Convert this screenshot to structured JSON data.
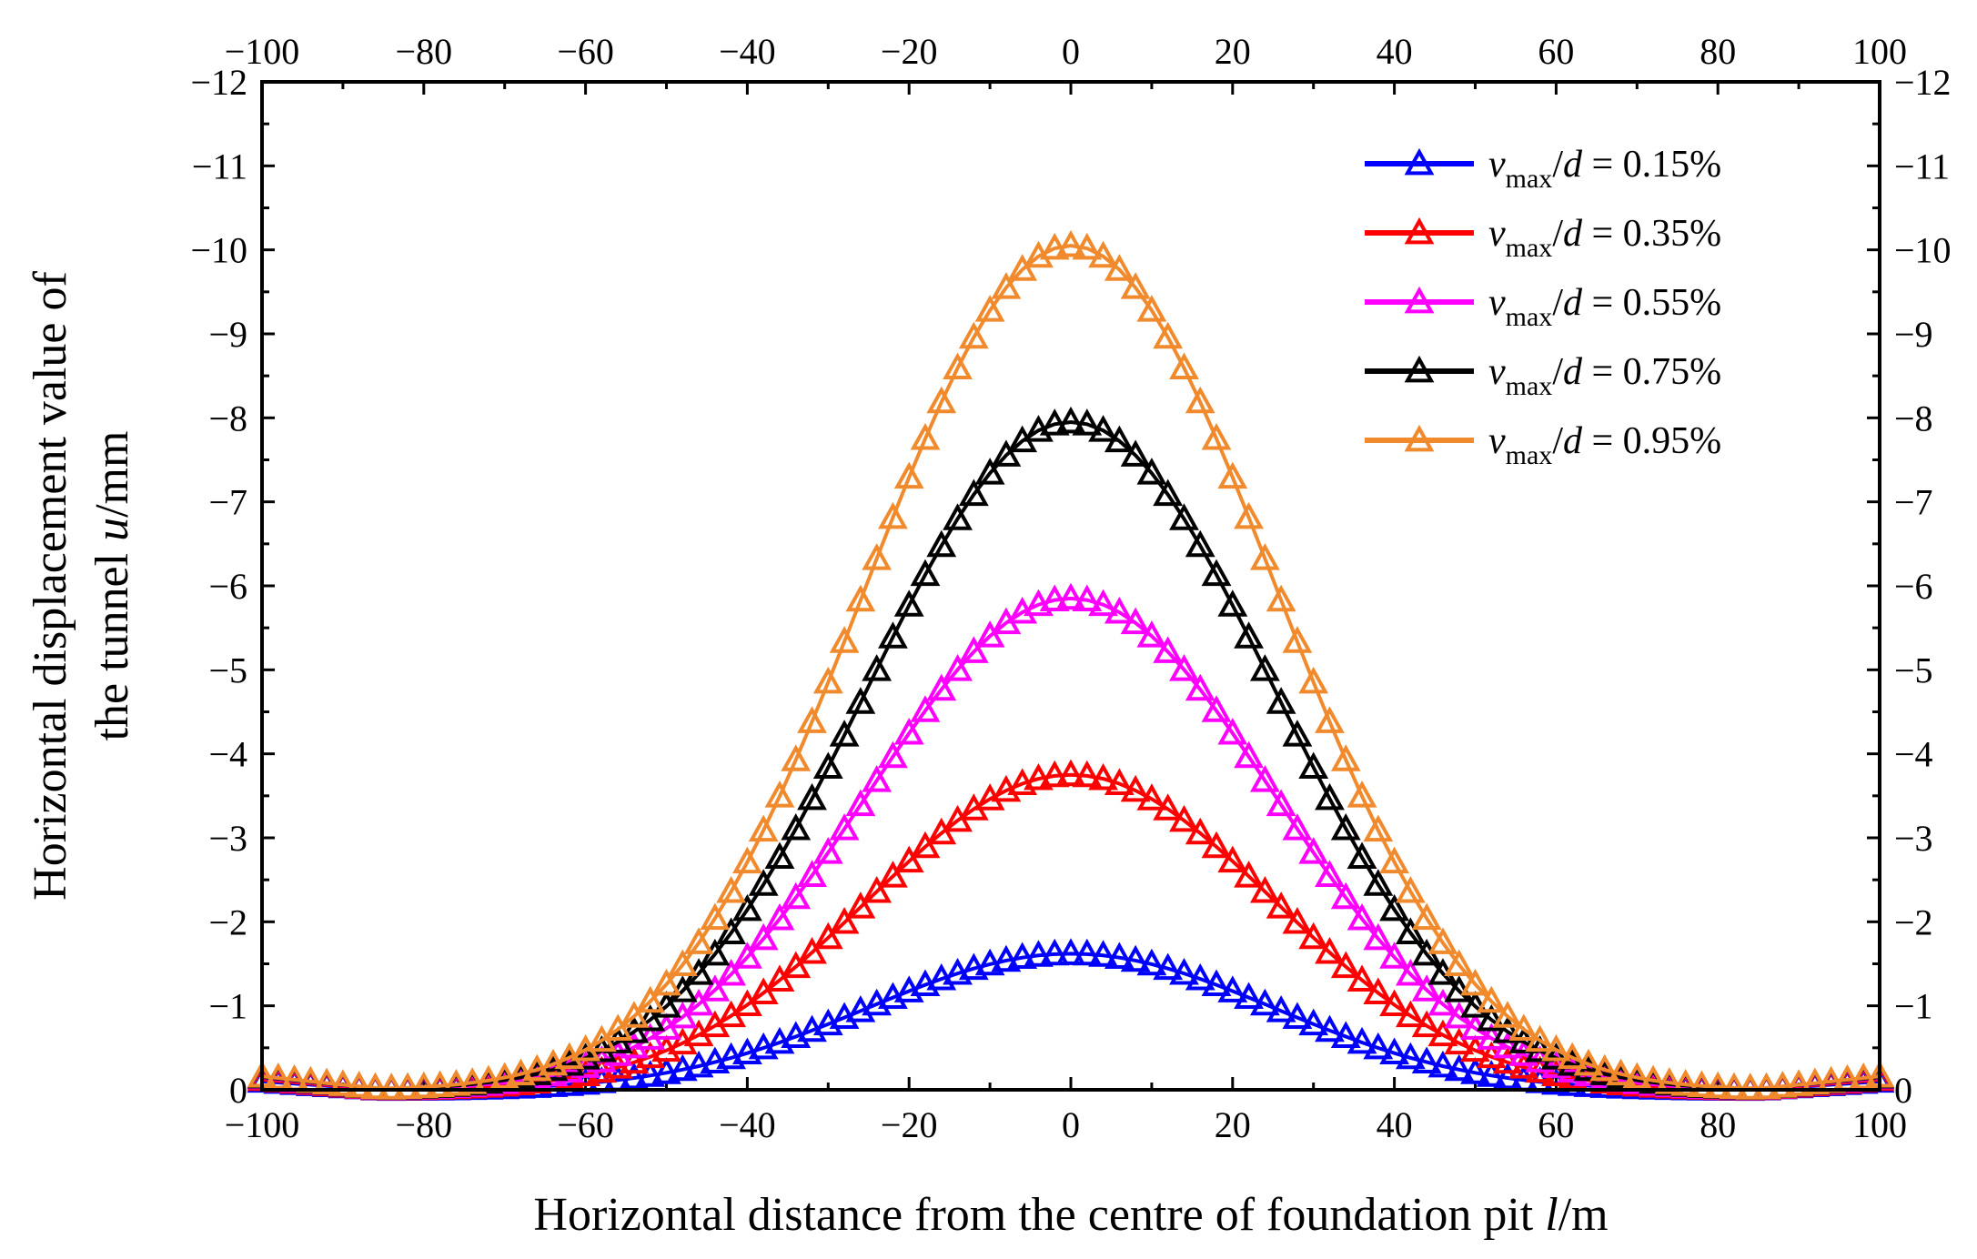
{
  "chart_data": {
    "type": "line",
    "title": "",
    "xlabel": "Horizontal distance from the centre of foundation pit ",
    "xlabel_var": "l",
    "xlabel_unit": "/m",
    "ylabel_line1": "Horizontal displacement value of",
    "ylabel_line2": "the tunnel ",
    "ylabel_var": "u",
    "ylabel_unit": "/mm",
    "xlim": [
      -100,
      100
    ],
    "ylim": [
      0,
      -12
    ],
    "y_axis_inverted": true,
    "xticks": [
      -100,
      -80,
      -60,
      -40,
      -20,
      0,
      20,
      40,
      60,
      80,
      100
    ],
    "xtick_labels": [
      "−100",
      "−80",
      "−60",
      "−40",
      "−20",
      "0",
      "20",
      "40",
      "60",
      "80",
      "100"
    ],
    "yticks": [
      0,
      -1,
      -2,
      -3,
      -4,
      -5,
      -6,
      -7,
      -8,
      -9,
      -10,
      -11,
      -12
    ],
    "ytick_labels": [
      "0",
      "−1",
      "−2",
      "−3",
      "−4",
      "−5",
      "−6",
      "−7",
      "−8",
      "−9",
      "−10",
      "−11",
      "−12"
    ],
    "marker": "open-triangle",
    "legend_position": "top-right",
    "x_step": 2,
    "series": [
      {
        "name_var": "v",
        "name_sub": "max",
        "name_rest": "/d = 0.15%",
        "color": "#0000ff",
        "peak": -1.62,
        "tail": -0.1
      },
      {
        "name_var": "v",
        "name_sub": "max",
        "name_rest": "/d = 0.35%",
        "color": "#ff0000",
        "peak": -3.75,
        "tail": -0.12
      },
      {
        "name_var": "v",
        "name_sub": "max",
        "name_rest": "/d = 0.55%",
        "color": "#ff00ff",
        "peak": -5.85,
        "tail": -0.14
      },
      {
        "name_var": "v",
        "name_sub": "max",
        "name_rest": "/d = 0.75%",
        "color": "#000000",
        "peak": -7.95,
        "tail": -0.15
      },
      {
        "name_var": "v",
        "name_sub": "max",
        "name_rest": "/d = 0.95%",
        "color": "#f08a2c",
        "peak": -10.05,
        "tail": -0.16
      }
    ]
  }
}
